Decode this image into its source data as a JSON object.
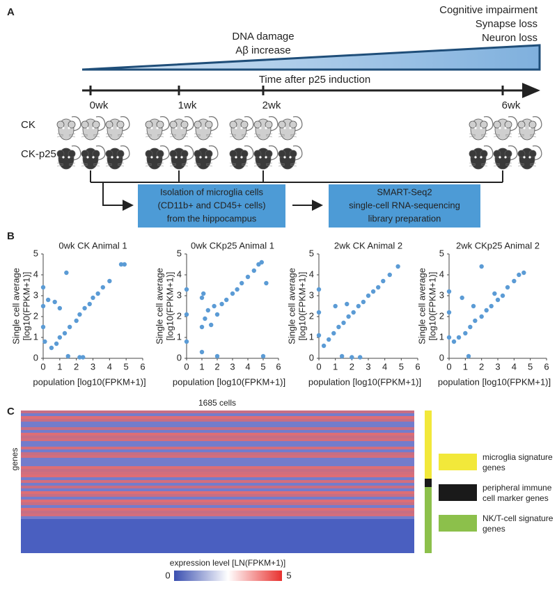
{
  "panel_a": {
    "label": "A",
    "outcomes": [
      "Cognitive impairment",
      "Synapse loss",
      "Neuron loss"
    ],
    "early_effects": [
      "DNA damage",
      "Aβ increase"
    ],
    "timeline_label": "Time after p25 induction",
    "timepoints": [
      "0wk",
      "1wk",
      "2wk",
      "6wk"
    ],
    "groups": [
      {
        "name": "CK",
        "color": "#cfcfcf"
      },
      {
        "name": "CK-p25",
        "color": "#3a3a3a"
      }
    ],
    "steps": [
      [
        "Isolation of microglia cells",
        "(CD11b+ and CD45+ cells)",
        "from the hippocampus"
      ],
      [
        "SMART-Seq2",
        "single-cell RNA-sequencing",
        "library preparation"
      ]
    ]
  },
  "panel_b": {
    "label": "B",
    "charts": [
      {
        "type": "scatter",
        "title": "0wk CK Animal 1",
        "x_label": "population [log10(FPKM+1)]",
        "y_label": [
          "Single cell average",
          "[log10(FPKM+1)]"
        ],
        "xlim": [
          0,
          6
        ],
        "ylim": [
          0,
          5
        ],
        "xticks": [
          0,
          1,
          2,
          3,
          4,
          5,
          6
        ],
        "yticks": [
          0,
          1,
          2,
          3,
          4,
          5
        ],
        "color": "#5b9bd5",
        "x": [
          0,
          0,
          0,
          0.1,
          0.3,
          0.5,
          0.8,
          1,
          1.3,
          1.6,
          2,
          2.2,
          2.5,
          2.8,
          3,
          3.3,
          3.6,
          4,
          4.7,
          4.9,
          1.5,
          2.2,
          1,
          0.7,
          1.4,
          2.4
        ],
        "y": [
          3.4,
          2.5,
          1.5,
          0.8,
          2.8,
          0.5,
          0.7,
          1,
          1.2,
          1.5,
          1.8,
          2.1,
          2.4,
          2.6,
          2.9,
          3.1,
          3.4,
          3.7,
          4.5,
          4.5,
          0.1,
          0.05,
          2.4,
          2.7,
          4.1,
          0.05
        ]
      },
      {
        "type": "scatter",
        "title": "0wk CKp25 Animal 1",
        "x_label": "population [log10(FPKM+1)]",
        "y_label": [
          "Single cell average",
          "[log10(FPKM+1)]"
        ],
        "xlim": [
          0,
          6
        ],
        "ylim": [
          0,
          5
        ],
        "xticks": [
          0,
          1,
          2,
          3,
          4,
          5,
          6
        ],
        "yticks": [
          0,
          1,
          2,
          3,
          4,
          5
        ],
        "color": "#5b9bd5",
        "x": [
          0,
          0,
          0,
          1,
          1,
          1,
          1.2,
          1.4,
          1.6,
          1.8,
          2,
          2.3,
          2.6,
          3,
          3.3,
          3.6,
          4,
          4.4,
          4.7,
          5,
          5.2,
          2,
          1.1,
          4.9
        ],
        "y": [
          3.3,
          2.1,
          0.8,
          2.9,
          1.5,
          0.3,
          1.9,
          2.3,
          1.6,
          2.5,
          2.1,
          2.6,
          2.8,
          3.1,
          3.3,
          3.6,
          3.9,
          4.2,
          4.5,
          0.1,
          3.6,
          0.1,
          3.1,
          4.6
        ]
      },
      {
        "type": "scatter",
        "title": "2wk CK Animal 2",
        "x_label": "population [log10(FPKM+1)]",
        "y_label": [
          "Single cell average",
          "[log10(FPKM+1)]"
        ],
        "xlim": [
          0,
          6
        ],
        "ylim": [
          0,
          5
        ],
        "xticks": [
          0,
          1,
          2,
          3,
          4,
          5,
          6
        ],
        "yticks": [
          0,
          1,
          2,
          3,
          4,
          5
        ],
        "color": "#5b9bd5",
        "x": [
          0,
          0,
          0,
          0.3,
          0.6,
          0.9,
          1.2,
          1.5,
          1.8,
          2.1,
          2.4,
          2.7,
          3,
          3.3,
          3.6,
          3.9,
          4.3,
          4.8,
          1.4,
          2,
          2.5,
          1,
          1.7
        ],
        "y": [
          3.3,
          2.2,
          1.1,
          0.6,
          0.9,
          1.2,
          1.5,
          1.7,
          2,
          2.2,
          2.5,
          2.7,
          3,
          3.2,
          3.4,
          3.7,
          4,
          4.4,
          0.1,
          0.05,
          0.05,
          2.5,
          2.6
        ]
      },
      {
        "type": "scatter",
        "title": "2wk CKp25 Animal 2",
        "x_label": "population [log10(FPKM+1)]",
        "y_label": [
          "Single cell average",
          "[log10(FPKM+1)]"
        ],
        "xlim": [
          0,
          6
        ],
        "ylim": [
          0,
          5
        ],
        "xticks": [
          0,
          1,
          2,
          3,
          4,
          5,
          6
        ],
        "yticks": [
          0,
          1,
          2,
          3,
          4,
          5
        ],
        "color": "#5b9bd5",
        "x": [
          0,
          0,
          0,
          0.3,
          0.6,
          1,
          1.3,
          1.6,
          2,
          2.3,
          2.6,
          3,
          3.3,
          3.6,
          4,
          4.3,
          4.6,
          2,
          0.8,
          1.5,
          1.2,
          2.8
        ],
        "y": [
          3.2,
          2.2,
          1,
          0.8,
          1,
          1.2,
          1.5,
          1.8,
          2,
          2.3,
          2.5,
          2.8,
          3,
          3.4,
          3.7,
          4,
          4.1,
          4.4,
          2.9,
          2.5,
          0.1,
          3.1
        ]
      }
    ]
  },
  "panel_c": {
    "label": "C",
    "title": "1685 cells",
    "y_label": "genes",
    "colorbar_label": "expression level [LN(FPKM+1)]",
    "colorbar_ticks": [
      0,
      5
    ],
    "legend": [
      {
        "label": [
          "microglia signature",
          "genes"
        ],
        "color": "#f2e83a"
      },
      {
        "label": [
          "peripheral immune",
          "cell marker genes"
        ],
        "color": "#1a1a1a"
      },
      {
        "label": [
          "NK/T-cell signature",
          "genes"
        ],
        "color": "#8cc04b"
      }
    ]
  }
}
